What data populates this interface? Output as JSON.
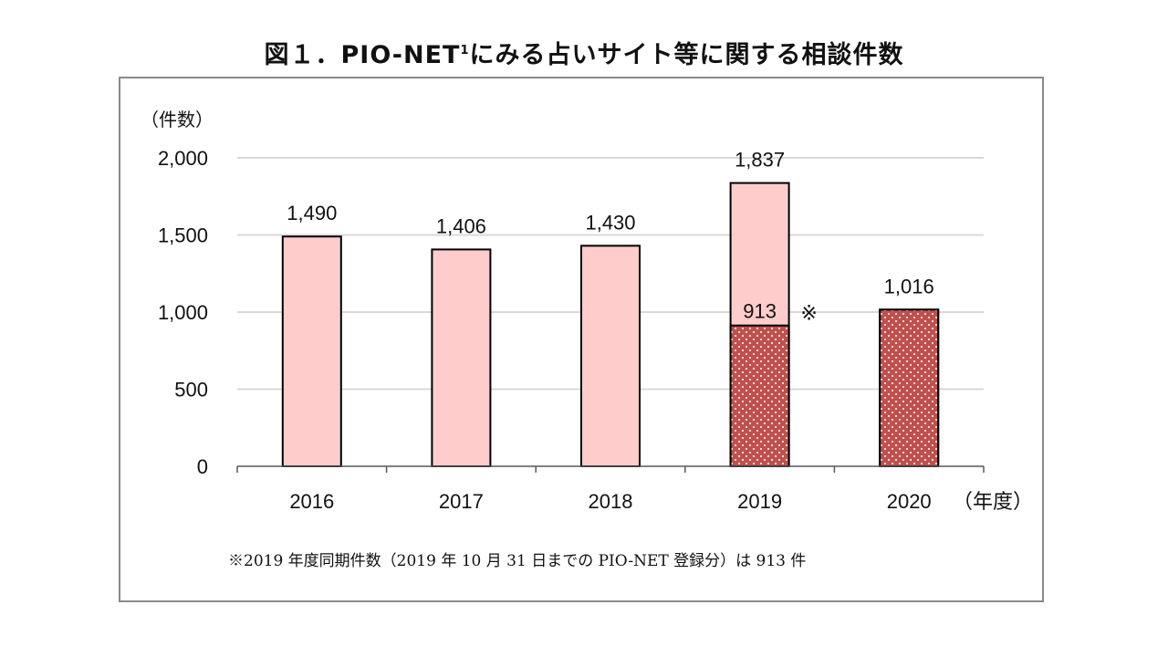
{
  "title": {
    "main": "図１．PIO-NET",
    "superscript": "1",
    "rest": "にみる占いサイト等に関する相談件数"
  },
  "footnote": "※2019 年度同期件数（2019 年 10 月 31 日までの PIO-NET 登録分）は 913 件",
  "chart_data": {
    "type": "bar",
    "title": "図１．PIO-NET1にみる占いサイト等に関する相談件数",
    "categories": [
      "2016",
      "2017",
      "2018",
      "2019",
      "2020"
    ],
    "series": [
      {
        "name": "",
        "values": [
          1490,
          1406,
          1430,
          1837,
          1016
        ],
        "labels": [
          "1,490",
          "1,406",
          "1,430",
          "1,837",
          "1,016"
        ],
        "color": "#ffcccc"
      },
      {
        "name": "",
        "values": [
          null,
          null,
          null,
          913,
          1016
        ],
        "labels": [
          null,
          null,
          null,
          "913",
          null
        ],
        "color": "#c0504d"
      }
    ],
    "annotation": "※",
    "ylabel": "（件数）",
    "xlabel": "（年度）",
    "ylim": [
      0,
      2000
    ],
    "yticks": [
      0,
      500,
      1000,
      1500,
      2000
    ],
    "ytick_labels": [
      "0",
      "500",
      "1,000",
      "1,500",
      "2,000"
    ],
    "grid": true,
    "legend": "none"
  },
  "colors": {
    "bar_light": "#ffcccc",
    "bar_dark": "#c0504d",
    "dots": "#ffffff",
    "grid": "#d9d9d9",
    "axis": "#595959"
  }
}
